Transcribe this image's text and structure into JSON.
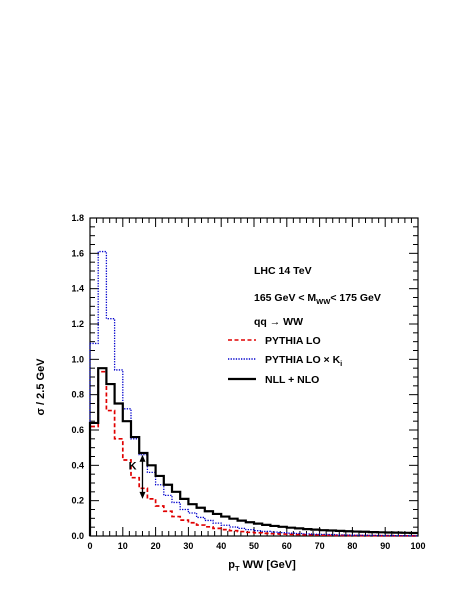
{
  "chart_data": {
    "type": "line",
    "step": true,
    "xlabel": {
      "main": "p",
      "sub": "T",
      "rest": " WW [GeV]"
    },
    "ylabel": "σ / 2.5 GeV",
    "xlim": [
      0,
      100
    ],
    "ylim": [
      0,
      1.8
    ],
    "xticks": [
      0,
      10,
      20,
      30,
      40,
      50,
      60,
      70,
      80,
      90,
      100
    ],
    "yticks": [
      0.0,
      0.2,
      0.4,
      0.6,
      0.8,
      1.0,
      1.2,
      1.4,
      1.6,
      1.8
    ],
    "ytick_labels": [
      "0.0",
      "0.2",
      "0.4",
      "0.6",
      "0.8",
      "1.0",
      "1.2",
      "1.4",
      "1.6",
      "1.8"
    ],
    "grid": false,
    "legend_position": "right",
    "bin_edges": [
      0,
      2.5,
      5,
      7.5,
      10,
      12.5,
      15,
      17.5,
      20,
      22.5,
      25,
      27.5,
      30,
      32.5,
      35,
      37.5,
      40,
      42.5,
      45,
      47.5,
      50,
      52.5,
      55,
      57.5,
      60,
      62.5,
      65,
      67.5,
      70,
      72.5,
      75,
      77.5,
      80,
      82.5,
      85,
      87.5,
      90,
      92.5,
      95,
      97.5,
      100
    ],
    "series": [
      {
        "name": "PYTHIA LO",
        "color": "#e00000",
        "dash": "dashed",
        "values": [
          0.62,
          0.93,
          0.71,
          0.55,
          0.43,
          0.33,
          0.27,
          0.21,
          0.17,
          0.14,
          0.11,
          0.09,
          0.075,
          0.062,
          0.052,
          0.043,
          0.036,
          0.03,
          0.025,
          0.021,
          0.018,
          0.015,
          0.013,
          0.011,
          0.009,
          0.008,
          0.007,
          0.006,
          0.005,
          0.004,
          0.0035,
          0.003,
          0.0025,
          0.002,
          0.0018,
          0.0015,
          0.0013,
          0.0011,
          0.001,
          0.0008
        ]
      },
      {
        "name": "PYTHIA LO × K",
        "color": "#0000cc",
        "dash": "dotted",
        "values": [
          1.09,
          1.61,
          1.23,
          0.94,
          0.72,
          0.55,
          0.46,
          0.36,
          0.29,
          0.23,
          0.19,
          0.15,
          0.13,
          0.105,
          0.088,
          0.073,
          0.061,
          0.051,
          0.043,
          0.036,
          0.03,
          0.026,
          0.022,
          0.019,
          0.016,
          0.014,
          0.012,
          0.01,
          0.009,
          0.008,
          0.0065,
          0.0055,
          0.0045,
          0.004,
          0.0035,
          0.003,
          0.0025,
          0.002,
          0.0018,
          0.0015
        ]
      },
      {
        "name": "NLL + NLO",
        "color": "#000000",
        "dash": "solid",
        "values": [
          0.64,
          0.95,
          0.86,
          0.75,
          0.65,
          0.56,
          0.47,
          0.4,
          0.34,
          0.29,
          0.25,
          0.21,
          0.18,
          0.16,
          0.14,
          0.125,
          0.11,
          0.098,
          0.087,
          0.078,
          0.07,
          0.063,
          0.057,
          0.052,
          0.047,
          0.043,
          0.039,
          0.036,
          0.033,
          0.031,
          0.029,
          0.027,
          0.025,
          0.024,
          0.022,
          0.021,
          0.02,
          0.019,
          0.018,
          0.017
        ]
      }
    ],
    "legend_header": {
      "line1": "LHC 14 TeV",
      "line2_pre": "165 GeV < M",
      "line2_sub": "WW",
      "line2_post": "< 175 GeV",
      "line3": "qq → WW"
    },
    "legend_entries": [
      {
        "label": "PYTHIA LO",
        "sub": ""
      },
      {
        "label": "PYTHIA LO × K",
        "sub": "i"
      },
      {
        "label": "NLL + NLO",
        "sub": ""
      }
    ],
    "annotation": {
      "text": "K",
      "label_x": 13,
      "label_y": 0.4,
      "arrow_x": 16,
      "arrow_y_from": 0.21,
      "arrow_y_to": 0.46
    }
  }
}
